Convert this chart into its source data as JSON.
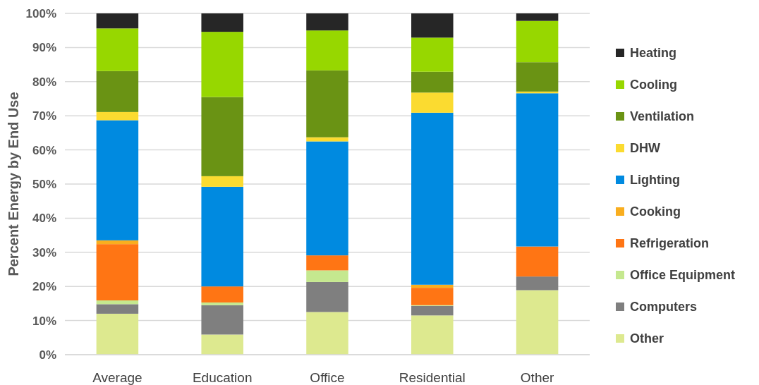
{
  "chart_data": {
    "type": "bar",
    "stacked": true,
    "ylabel": "Percent Energy by End Use",
    "categories": [
      "Average",
      "Education",
      "Office",
      "Residential",
      "Other"
    ],
    "series": [
      {
        "name": "Other",
        "color": "#dde98f",
        "values": [
          12.0,
          5.9,
          12.5,
          11.5,
          18.9
        ]
      },
      {
        "name": "Computers",
        "color": "#7f7f7f",
        "values": [
          2.8,
          8.6,
          8.8,
          2.8,
          4.0
        ]
      },
      {
        "name": "Office Equipment",
        "color": "#c5e88f",
        "values": [
          1.1,
          0.8,
          3.4,
          0.2,
          0
        ]
      },
      {
        "name": "Refrigeration",
        "color": "#ff7514",
        "values": [
          16.5,
          4.7,
          4.4,
          5.1,
          8.8
        ]
      },
      {
        "name": "Cooking",
        "color": "#f9ae1f",
        "values": [
          1.1,
          0,
          0,
          0.9,
          0
        ]
      },
      {
        "name": "Lighting",
        "color": "#008ae0",
        "values": [
          35.2,
          29.2,
          33.4,
          50.4,
          44.9
        ]
      },
      {
        "name": "DHW",
        "color": "#fbdb30",
        "values": [
          2.4,
          3.1,
          1.2,
          5.9,
          0.5
        ]
      },
      {
        "name": "Ventilation",
        "color": "#6a9314",
        "values": [
          12.0,
          23.2,
          19.6,
          6.1,
          8.6
        ]
      },
      {
        "name": "Cooling",
        "color": "#97d700",
        "values": [
          12.5,
          19.1,
          11.7,
          10.0,
          12.1
        ]
      },
      {
        "name": "Heating",
        "color": "#262626",
        "values": [
          4.4,
          5.4,
          5.0,
          7.1,
          2.2
        ]
      }
    ],
    "ylim": [
      0,
      100
    ],
    "yticks": [
      {
        "value": 0,
        "label": "0%"
      },
      {
        "value": 10,
        "label": "10%"
      },
      {
        "value": 20,
        "label": "20%"
      },
      {
        "value": 30,
        "label": "30%"
      },
      {
        "value": 40,
        "label": "40%"
      },
      {
        "value": 50,
        "label": "50%"
      },
      {
        "value": 60,
        "label": "60%"
      },
      {
        "value": 70,
        "label": "70%"
      },
      {
        "value": 80,
        "label": "80%"
      },
      {
        "value": 90,
        "label": "90%"
      },
      {
        "value": 100,
        "label": "100%"
      }
    ],
    "grid": "y",
    "legend": "right"
  }
}
